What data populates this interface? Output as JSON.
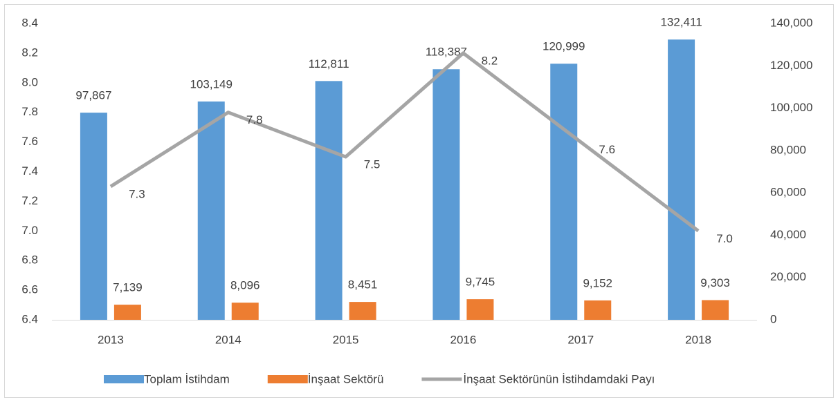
{
  "chart_data": {
    "type": "bar-line",
    "categories": [
      "2013",
      "2014",
      "2015",
      "2016",
      "2017",
      "2018"
    ],
    "series": [
      {
        "name": "Toplam İstihdam",
        "type": "bar",
        "axis": "y2",
        "color": "#5b9bd5",
        "values": [
          97867,
          103149,
          112811,
          118387,
          120999,
          132411
        ],
        "value_labels": [
          "97,867",
          "103,149",
          "112,811",
          "118,387",
          "120,999",
          "132,411"
        ]
      },
      {
        "name": "İnşaat Sektörü",
        "type": "bar",
        "axis": "y2",
        "color": "#ed7d31",
        "values": [
          7139,
          8096,
          8451,
          9745,
          9152,
          9303
        ],
        "value_labels": [
          "7,139",
          "8,096",
          "8,451",
          "9,745",
          "9,152",
          "9,303"
        ]
      },
      {
        "name": "İnşaat Sektörünün İstihdamdaki Payı",
        "type": "line",
        "axis": "y",
        "color": "#a5a5a5",
        "values": [
          7.3,
          7.8,
          7.5,
          8.2,
          7.6,
          7
        ],
        "value_labels": [
          "7.3",
          "7.8",
          "7.5",
          "8.2",
          "7.6",
          "7.0"
        ]
      }
    ],
    "ylim": [
      6.4,
      8.4
    ],
    "yticks": [
      6.4,
      6.6,
      6.8,
      {
        "value": 7,
        "label": "7.0"
      },
      7.2,
      7.4,
      7.6,
      7.8,
      {
        "value": 8,
        "label": "8.0"
      },
      8.2,
      8.4
    ],
    "y2lim": [
      0,
      140000
    ],
    "y2ticks": [
      0,
      {
        "value": 20000,
        "label": "20,000"
      },
      {
        "value": 40000,
        "label": "40,000"
      },
      {
        "value": 60000,
        "label": "60,000"
      },
      {
        "value": 80000,
        "label": "80,000"
      },
      {
        "value": 100000,
        "label": "100,000"
      },
      {
        "value": 120000,
        "label": "120,000"
      },
      {
        "value": 140000,
        "label": "140,000"
      }
    ],
    "grid": false,
    "legend": "bottom"
  }
}
